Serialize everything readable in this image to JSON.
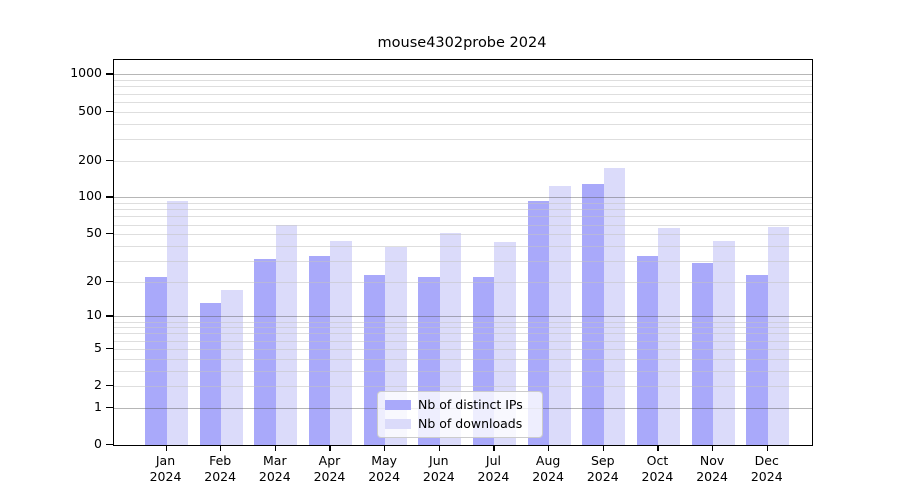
{
  "chart_data": {
    "type": "bar",
    "title": "mouse4302probe 2024",
    "categories": [
      "Jan 2024",
      "Feb 2024",
      "Mar 2024",
      "Apr 2024",
      "May 2024",
      "Jun 2024",
      "Jul 2024",
      "Aug 2024",
      "Sep 2024",
      "Oct 2024",
      "Nov 2024",
      "Dec 2024"
    ],
    "month_labels": [
      "Jan",
      "Feb",
      "Mar",
      "Apr",
      "May",
      "Jun",
      "Jul",
      "Aug",
      "Sep",
      "Oct",
      "Nov",
      "Dec"
    ],
    "year_label": "2024",
    "series": [
      {
        "name": "Nb of distinct IPs",
        "color": "#a9a9fa",
        "values": [
          22,
          13,
          31,
          33,
          23,
          22,
          22,
          93,
          129,
          33,
          29,
          23
        ]
      },
      {
        "name": "Nb of downloads",
        "color": "#dbdbfa",
        "values": [
          93,
          17,
          59,
          44,
          39,
          51,
          43,
          124,
          173,
          56,
          44,
          57
        ]
      }
    ],
    "y_axis": {
      "scale": "log10(1+value)",
      "tick_values": [
        0,
        1,
        2,
        5,
        10,
        20,
        50,
        100,
        200,
        500,
        1000
      ],
      "major_gridline_values": [
        1,
        10,
        100,
        1000
      ],
      "minor_gridline_values": [
        2,
        3,
        4,
        5,
        6,
        7,
        8,
        9,
        20,
        30,
        40,
        50,
        60,
        70,
        80,
        90,
        200,
        300,
        400,
        500,
        600,
        700,
        800,
        900
      ],
      "min": 0,
      "max": 1290
    },
    "grid": "horizontal",
    "legend_position": "lower center inside plot"
  },
  "colors": {
    "bar_distinct_ips": "#a9a9fa",
    "bar_downloads": "#dbdbfa",
    "axis_line": "#000000",
    "major_grid": "#b5b5b5",
    "minor_grid": "#e9e9e9",
    "legend_border": "#cccccc",
    "background": "#ffffff"
  }
}
